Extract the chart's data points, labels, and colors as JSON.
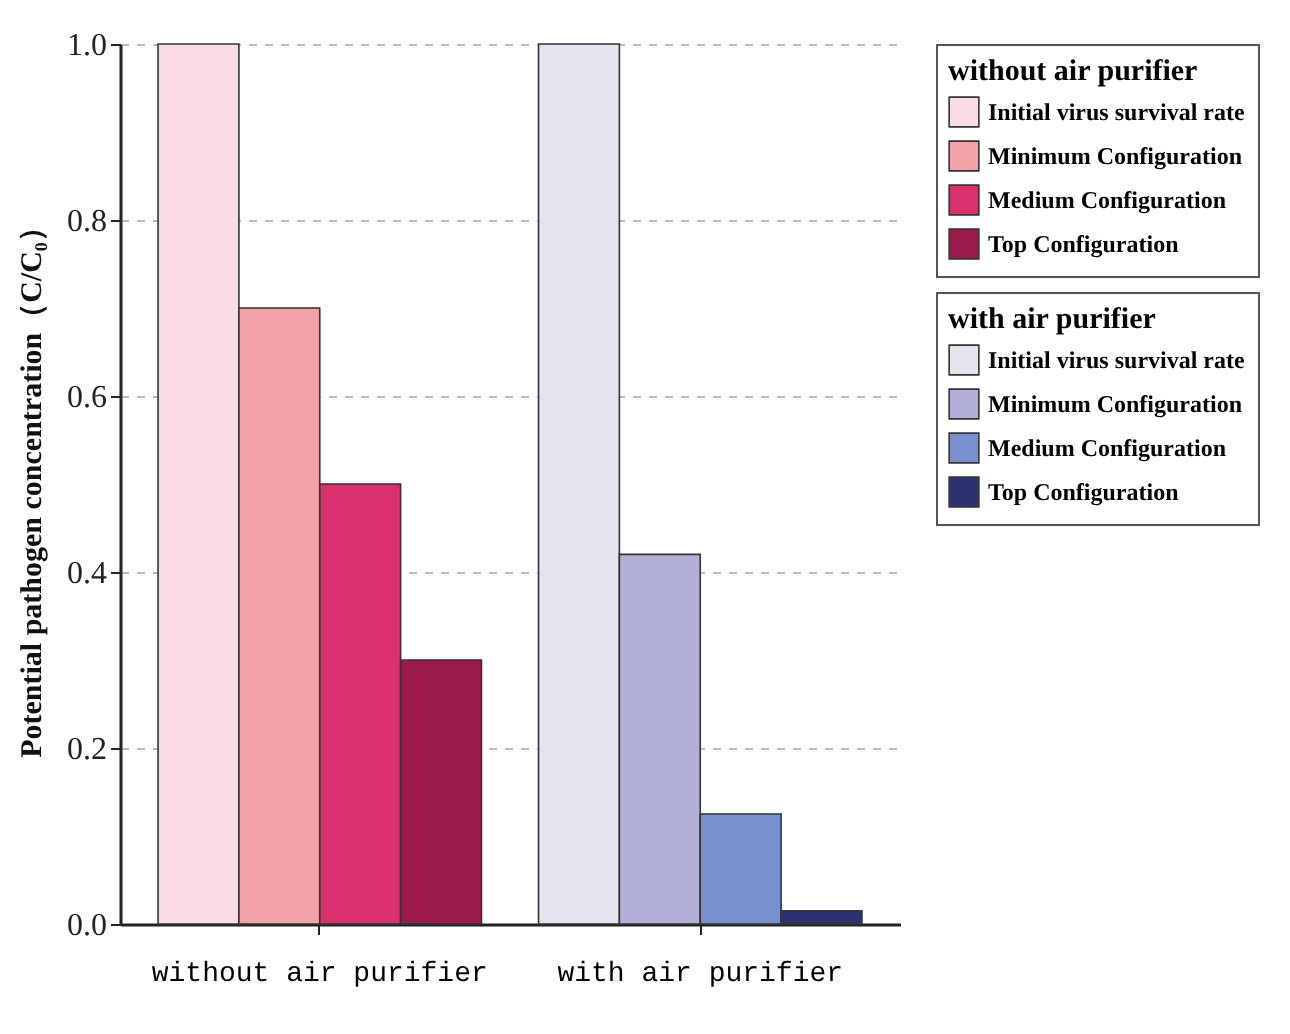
{
  "chart_data": {
    "type": "bar",
    "ylabel": "Potential pathogen concentration（C/C₀）",
    "categories": [
      "without air purifier",
      "with air purifier"
    ],
    "series": [
      {
        "name": "Initial virus survival rate",
        "color": "#fadde4",
        "values": [
          1.0,
          null
        ]
      },
      {
        "name": "Minimum Configuration",
        "color": "#f2a3a8",
        "values": [
          0.7,
          null
        ]
      },
      {
        "name": "Medium Configuration",
        "color": "#d9306e",
        "values": [
          0.5,
          null
        ]
      },
      {
        "name": "Top Configuration",
        "color": "#9c1a4a",
        "values": [
          0.3,
          null
        ]
      },
      {
        "name": "Initial virus survival rate",
        "color": "#e4e4ec",
        "values": [
          null,
          1.0
        ]
      },
      {
        "name": "Minimum Configuration",
        "color": "#b3b0d8",
        "values": [
          null,
          0.42
        ]
      },
      {
        "name": "Medium Configuration",
        "color": "#7791cf",
        "values": [
          null,
          0.125
        ]
      },
      {
        "name": "Top Configuration",
        "color": "#2c3170",
        "values": [
          null,
          0.015
        ]
      }
    ],
    "legend_title": "without air purifier",
    "annotations": [
      "with air purifier"
    ],
    "ylim": [
      0,
      1.0
    ],
    "yticks": [
      {
        "value": 0,
        "label": "0.0"
      },
      {
        "value": 0.2,
        "label": "0.2"
      },
      {
        "value": 0.4,
        "label": "0.4"
      },
      {
        "value": 0.6,
        "label": "0.6"
      },
      {
        "value": 0.8,
        "label": "0.8"
      },
      {
        "value": 1.0,
        "label": "1.0"
      }
    ],
    "grid": "y",
    "legend": "right"
  }
}
